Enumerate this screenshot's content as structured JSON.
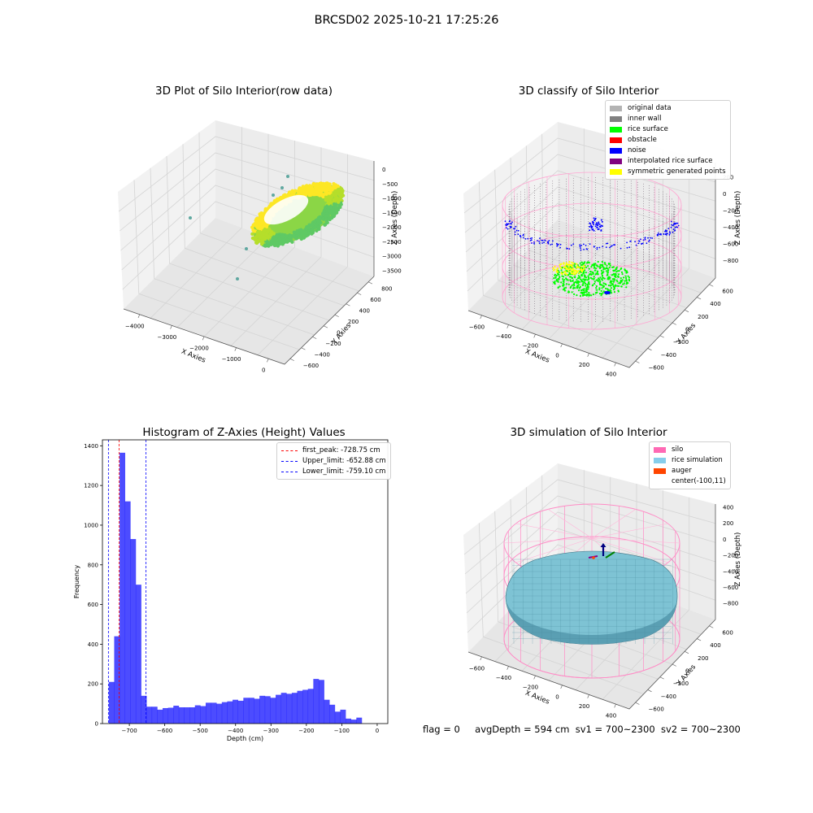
{
  "figure_title": "BRCSD02 2025-10-21 17:25:26",
  "chart_data": [
    {
      "type": "scatter",
      "title": "3D Plot of Silo Interior(row data)",
      "xlabel": "X Axies",
      "ylabel": "Y Axies",
      "zlabel": "Z Axies (Depth)",
      "x_ticks": [
        "−4000",
        "−3000",
        "−2000",
        "−1000",
        "0"
      ],
      "y_ticks": [
        "−600",
        "−400",
        "−200",
        "0",
        "200",
        "400",
        "600",
        "800"
      ],
      "z_ticks": [
        "0",
        "−500",
        "−1000",
        "−1500",
        "−2000",
        "−2500",
        "−3000",
        "−3500"
      ],
      "colormap": [
        "#5fc964",
        "#b5de2b",
        "#fde725"
      ]
    },
    {
      "type": "scatter",
      "title": "3D classify of Silo Interior",
      "xlabel": "X Axies",
      "ylabel": "Y Axies",
      "zlabel": "Z Axies (Depth)",
      "x_ticks": [
        "−600",
        "−400",
        "−200",
        "0",
        "200",
        "400"
      ],
      "y_ticks": [
        "−600",
        "−400",
        "−200",
        "0",
        "200",
        "400",
        "600"
      ],
      "z_ticks": [
        "200",
        "0",
        "−200",
        "−400",
        "−600",
        "−800"
      ],
      "legend_position": "top-right",
      "legend": [
        {
          "label": "original data",
          "color": "#b3b3b3"
        },
        {
          "label": "inner wall",
          "color": "#808080"
        },
        {
          "label": "rice surface",
          "color": "#00ff00"
        },
        {
          "label": "obstacle",
          "color": "#ff0000"
        },
        {
          "label": "noise",
          "color": "#0000ff"
        },
        {
          "label": "interpolated rice surface",
          "color": "#800080"
        },
        {
          "label": "symmetric generated points",
          "color": "#ffff00"
        }
      ]
    },
    {
      "type": "bar",
      "title": "Histogram of Z-Axies (Height) Values",
      "xlabel": "Depth (cm)",
      "ylabel": "Frequency",
      "xlim": [
        -776,
        30
      ],
      "ylim": [
        0,
        1430
      ],
      "x_ticks": [
        -700,
        -600,
        -500,
        -400,
        -300,
        -200,
        -100,
        0
      ],
      "y_ticks": [
        0,
        200,
        400,
        600,
        800,
        1000,
        1200,
        1400
      ],
      "bin_start": -758,
      "bin_width": 15.2,
      "values": [
        210,
        440,
        1365,
        1120,
        930,
        700,
        140,
        85,
        85,
        70,
        78,
        80,
        90,
        82,
        82,
        82,
        92,
        88,
        105,
        105,
        100,
        108,
        112,
        120,
        115,
        130,
        130,
        125,
        140,
        138,
        130,
        145,
        155,
        150,
        155,
        165,
        170,
        175,
        225,
        220,
        120,
        95,
        60,
        70,
        25,
        20,
        30
      ],
      "bar_color": "#0000ff",
      "legend_position": "top-right",
      "vlines": [
        {
          "label": "first_peak: -728.75 cm",
          "x": -728.75,
          "color": "#ff0000"
        },
        {
          "label": "Upper_limit: -652.88 cm",
          "x": -652.88,
          "color": "#0000ff"
        },
        {
          "label": "Lower_limit: -759.10 cm",
          "x": -759.1,
          "color": "#0000ff"
        }
      ]
    },
    {
      "type": "area",
      "title": "3D simulation of Silo Interior",
      "xlabel": "X Axies",
      "ylabel": "Y Axies",
      "zlabel": "Z Axies (Depth)",
      "x_ticks": [
        "−600",
        "−400",
        "−200",
        "0",
        "200",
        "400"
      ],
      "y_ticks": [
        "−600",
        "−400",
        "−200",
        "0",
        "200",
        "400",
        "600"
      ],
      "z_ticks": [
        "400",
        "200",
        "0",
        "−200",
        "−400",
        "−600",
        "−800"
      ],
      "legend_position": "top-right",
      "legend": [
        {
          "label": "silo",
          "color": "#ff69b4"
        },
        {
          "label": "rice simulation",
          "color": "#87ceeb"
        },
        {
          "label": "auger",
          "color": "#ff4500"
        },
        {
          "label": "center(-100,11)",
          "color": ""
        }
      ]
    }
  ],
  "footer": {
    "flag": "flag = 0",
    "avg_depth": "avgDepth = 594 cm",
    "sv1": "sv1 = 700~2300",
    "sv2": "sv2 = 700~2300"
  }
}
